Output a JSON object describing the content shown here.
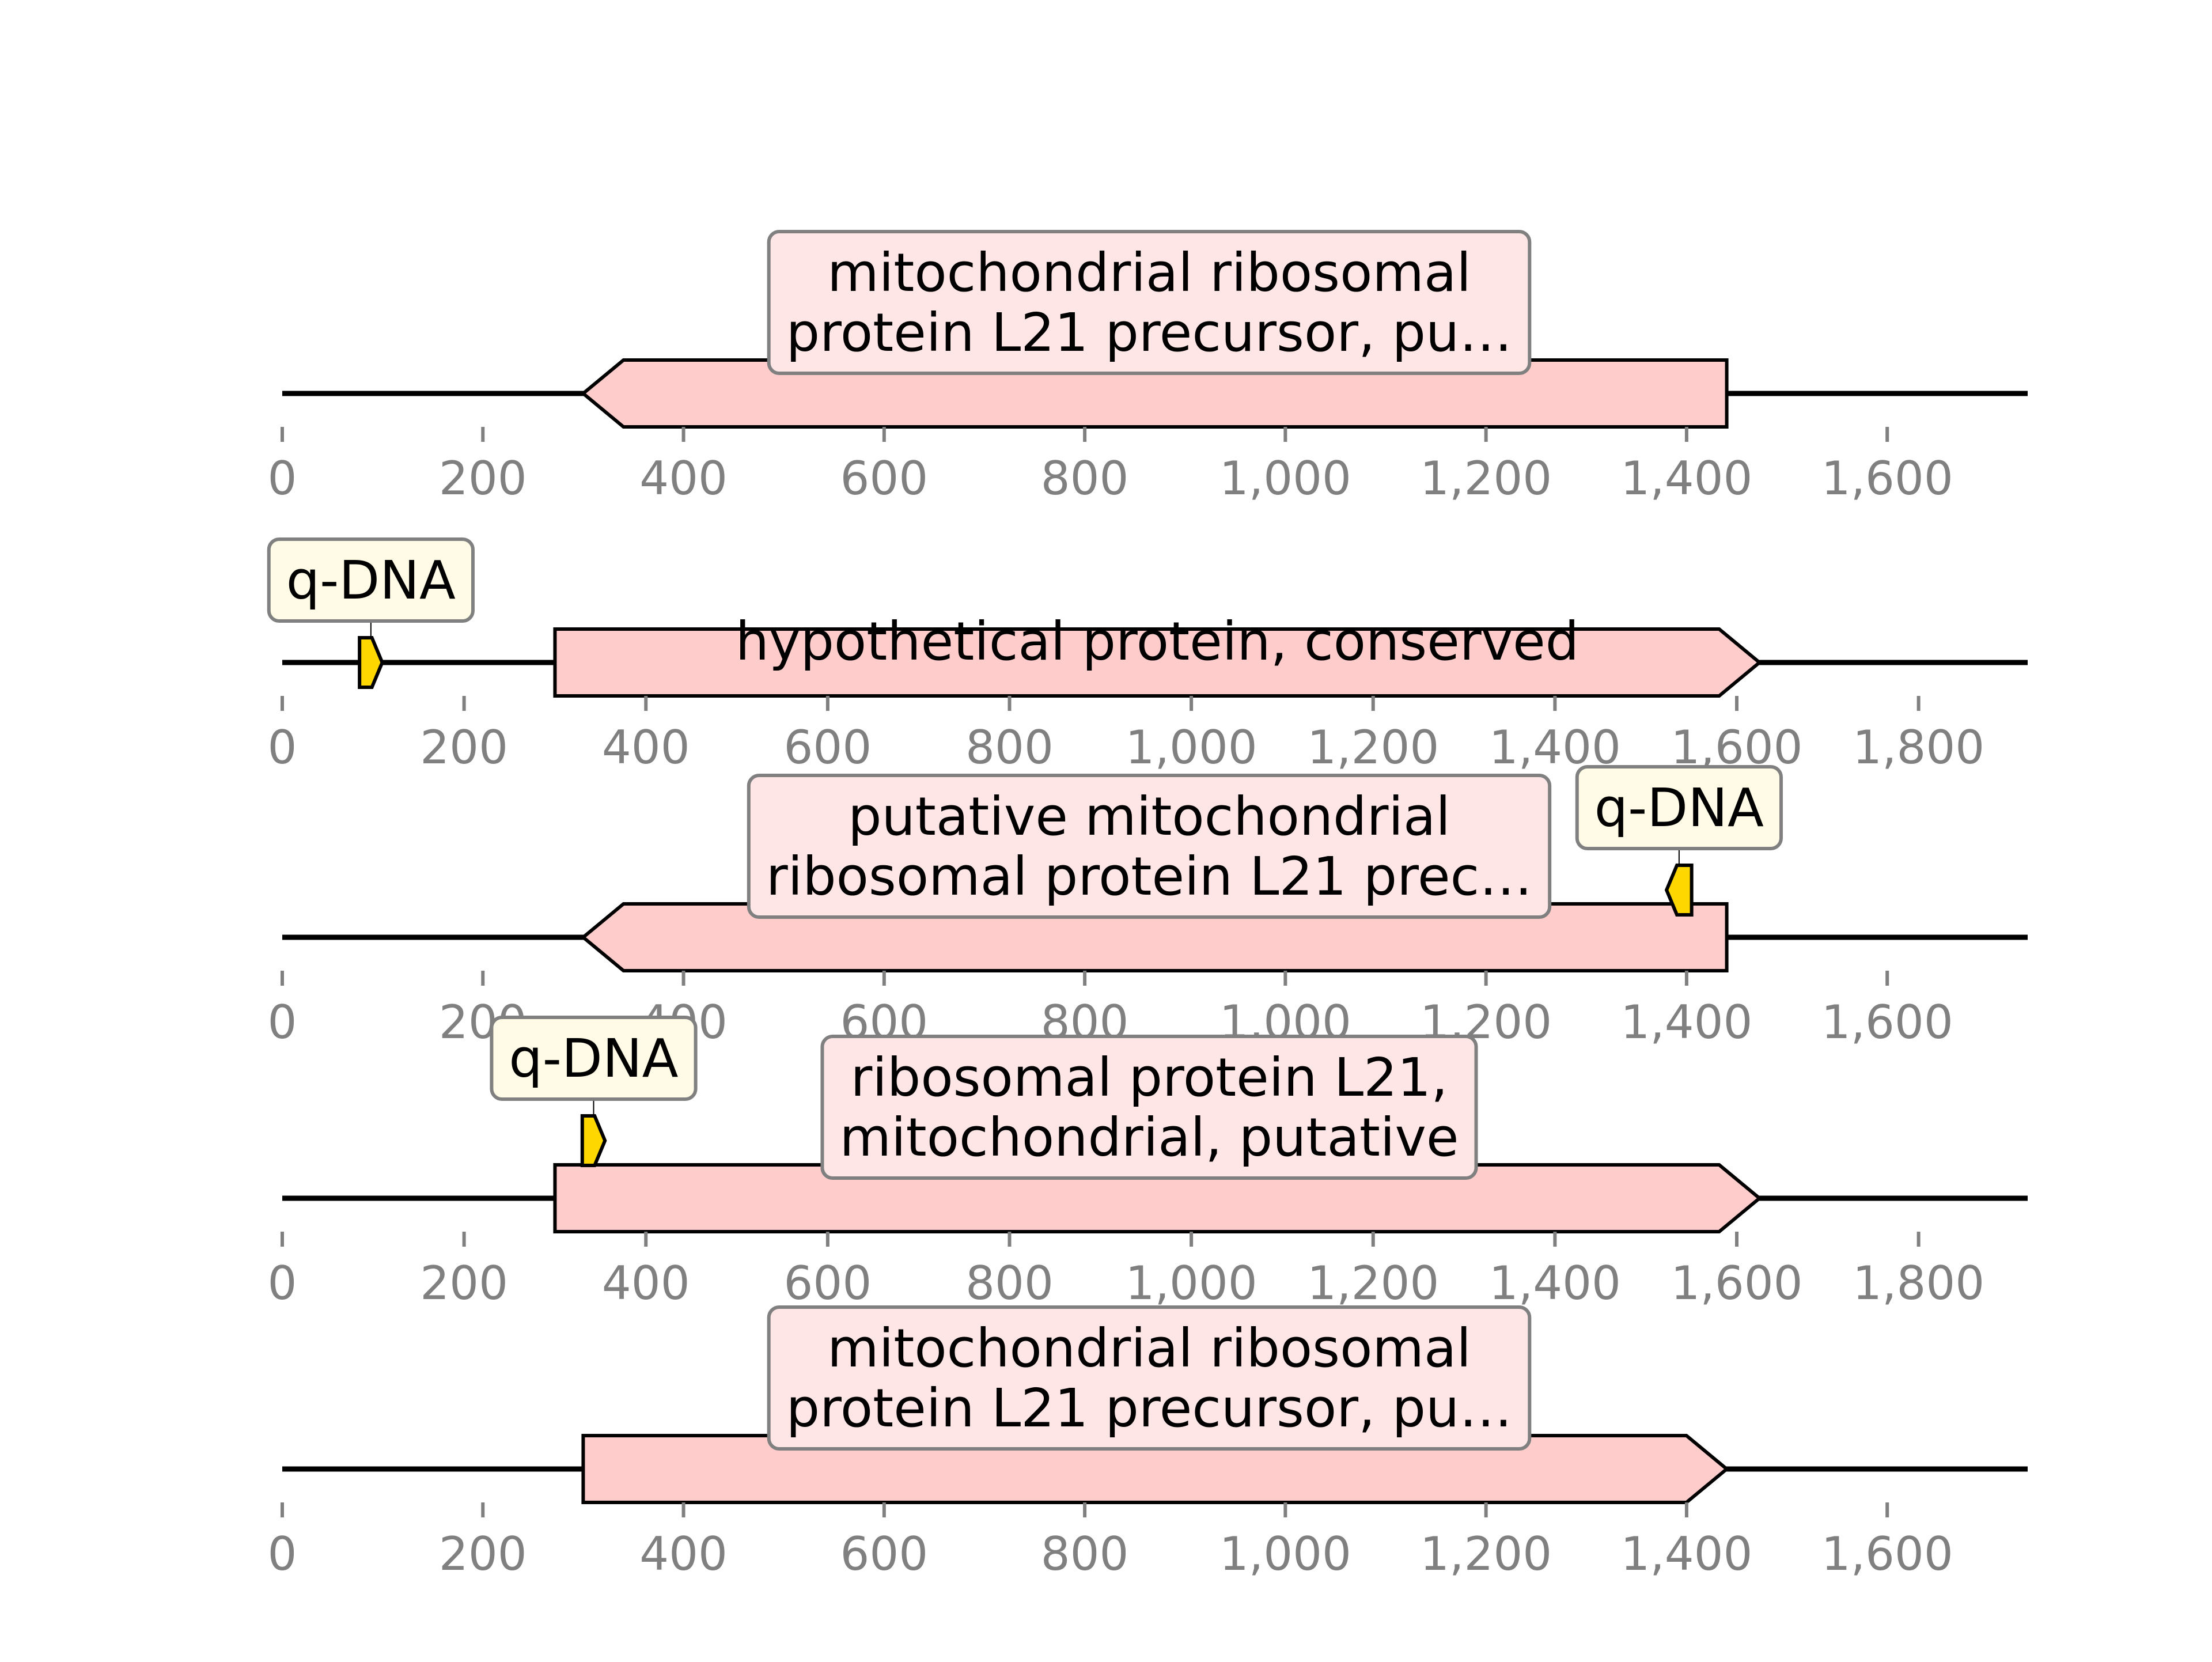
{
  "colors": {
    "background": "#ffffff",
    "backbone": "#000000",
    "gene_fill": "#ffcccc",
    "gene_label_bg": "#ffe6e6",
    "qdna_fill": "#ffd700",
    "qdna_label_bg": "#fffbe6",
    "label_border": "#808080",
    "tick_color": "#808080"
  },
  "tracks": [
    {
      "length": 1740,
      "ticks": [
        "0",
        "200",
        "400",
        "600",
        "800",
        "1,000",
        "1,200",
        "1,400",
        "1,600"
      ],
      "tick_values": [
        0,
        200,
        400,
        600,
        800,
        1000,
        1200,
        1400,
        1600
      ],
      "gene": {
        "start": 300,
        "end": 1440,
        "strand": -1,
        "label_lines": [
          "mitochondrial ribosomal",
          "protein L21 precursor, pu…"
        ]
      },
      "qdna": null
    },
    {
      "length": 1920,
      "ticks": [
        "0",
        "200",
        "400",
        "600",
        "800",
        "1,000",
        "1,200",
        "1,400",
        "1,600",
        "1,800"
      ],
      "tick_values": [
        0,
        200,
        400,
        600,
        800,
        1000,
        1200,
        1400,
        1600,
        1800
      ],
      "gene": {
        "start": 300,
        "end": 1625,
        "strand": 1,
        "label_lines": [
          "hypothetical protein, conserved"
        ]
      },
      "qdna": {
        "start": 85,
        "end": 110,
        "strand": 1,
        "label": "q-DNA"
      }
    },
    {
      "length": 1740,
      "ticks": [
        "0",
        "200",
        "400",
        "600",
        "800",
        "1,000",
        "1,200",
        "1,400",
        "1,600"
      ],
      "tick_values": [
        0,
        200,
        400,
        600,
        800,
        1000,
        1200,
        1400,
        1600
      ],
      "gene": {
        "start": 300,
        "end": 1440,
        "strand": -1,
        "label_lines": [
          "putative mitochondrial",
          "ribosomal protein L21 prec…"
        ]
      },
      "qdna": {
        "start": 1380,
        "end": 1405,
        "strand": -1,
        "label": "q-DNA"
      }
    },
    {
      "length": 1920,
      "ticks": [
        "0",
        "200",
        "400",
        "600",
        "800",
        "1,000",
        "1,200",
        "1,400",
        "1,600",
        "1,800"
      ],
      "tick_values": [
        0,
        200,
        400,
        600,
        800,
        1000,
        1200,
        1400,
        1600,
        1800
      ],
      "gene": {
        "start": 300,
        "end": 1625,
        "strand": 1,
        "label_lines": [
          "ribosomal protein L21,",
          "mitochondrial, putative"
        ]
      },
      "qdna": {
        "start": 330,
        "end": 355,
        "strand": 1,
        "label": "q-DNA"
      }
    },
    {
      "length": 1740,
      "ticks": [
        "0",
        "200",
        "400",
        "600",
        "800",
        "1,000",
        "1,200",
        "1,400",
        "1,600"
      ],
      "tick_values": [
        0,
        200,
        400,
        600,
        800,
        1000,
        1200,
        1400,
        1600
      ],
      "gene": {
        "start": 300,
        "end": 1440,
        "strand": 1,
        "label_lines": [
          "mitochondrial ribosomal",
          "protein L21 precursor, pu…"
        ]
      },
      "qdna": null
    }
  ]
}
